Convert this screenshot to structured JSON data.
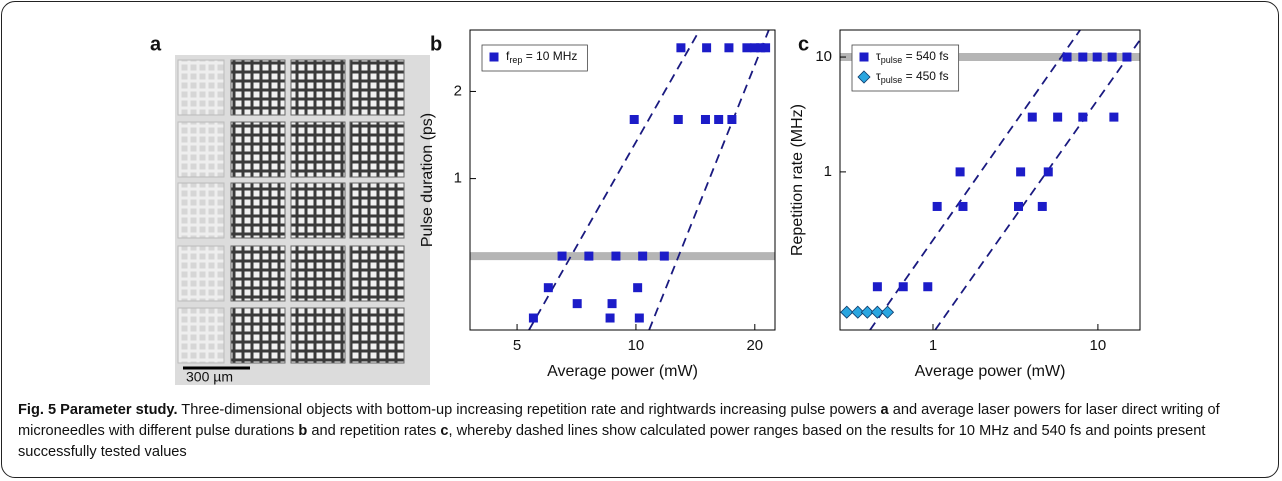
{
  "panel_a": {
    "label": "a",
    "scale_bar": "300 µm"
  },
  "chart_data": [
    {
      "type": "scatter",
      "label": "b",
      "xlabel": "Average power (mW)",
      "ylabel": "Pulse duration (ps)",
      "xscale": "log",
      "yscale": "log",
      "xlim": [
        3.8,
        22.5
      ],
      "ylim": [
        0.3,
        3.26
      ],
      "xticks": [
        5,
        10,
        20
      ],
      "yticks": [
        1,
        2
      ],
      "band": 0.54,
      "band_color": "#b5b5b5",
      "line_color": "#1a1a80",
      "legend": "upper left",
      "series": [
        {
          "name": [
            "f",
            "rep",
            " = 10 MHz"
          ],
          "color": "#1c1cc8",
          "marker": "square",
          "x": [
            13.0,
            15.1,
            17.2,
            19.1,
            20.0,
            20.7,
            21.3,
            9.9,
            12.8,
            15.0,
            16.2,
            17.5,
            6.5,
            7.6,
            8.9,
            10.4,
            11.8,
            6.0,
            10.1,
            7.1,
            8.7,
            5.5,
            8.6,
            10.2
          ],
          "values": [
            2.83,
            2.83,
            2.83,
            2.83,
            2.83,
            2.83,
            2.83,
            1.6,
            1.6,
            1.6,
            1.6,
            1.6,
            0.54,
            0.54,
            0.54,
            0.54,
            0.54,
            0.42,
            0.42,
            0.37,
            0.37,
            0.33,
            0.33,
            0.33
          ]
        }
      ],
      "lines": [
        {
          "x": [
            5.36,
            14.5
          ],
          "y": [
            0.3,
            3.26
          ]
        },
        {
          "x": [
            10.8,
            21.7
          ],
          "y": [
            0.3,
            3.26
          ]
        }
      ]
    },
    {
      "type": "scatter",
      "label": "c",
      "xlabel": "Average power (mW)",
      "ylabel": "Repetition rate (MHz)",
      "xscale": "log",
      "yscale": "log",
      "xlim": [
        0.273,
        18
      ],
      "ylim": [
        0.042,
        17.2
      ],
      "xticks": [
        1,
        10
      ],
      "yticks": [
        1,
        10
      ],
      "band": 10,
      "band_color": "#b5b5b5",
      "line_color": "#1a1a80",
      "legend": "upper left",
      "series": [
        {
          "name": [
            "τ",
            "pulse",
            " = 540 fs"
          ],
          "color": "#1c1cc8",
          "marker": "square",
          "x": [
            6.5,
            8.1,
            9.9,
            12.2,
            15.0,
            4.0,
            5.7,
            8.1,
            12.5,
            1.46,
            3.4,
            5.0,
            1.06,
            1.52,
            3.3,
            4.6,
            0.46,
            0.66,
            0.93
          ],
          "values": [
            10,
            10,
            10,
            10,
            10,
            3,
            3,
            3,
            3,
            1,
            1,
            1,
            0.5,
            0.5,
            0.5,
            0.5,
            0.1,
            0.1,
            0.1
          ]
        },
        {
          "name": [
            "τ",
            "pulse",
            " = 450 fs"
          ],
          "color": "#2aa6e0",
          "marker": "diamond",
          "x": [
            0.3,
            0.35,
            0.4,
            0.46,
            0.53
          ],
          "values": [
            0.06,
            0.06,
            0.06,
            0.06,
            0.06
          ]
        }
      ],
      "lines": [
        {
          "x": [
            0.415,
            7.8
          ],
          "y": [
            0.042,
            17.2
          ]
        },
        {
          "x": [
            1.03,
            18
          ],
          "y": [
            0.042,
            14.1
          ]
        }
      ]
    }
  ],
  "caption": {
    "segments": [
      {
        "text": "Fig. 5 Parameter study.",
        "bold": true
      },
      {
        "text": " Three-dimensional objects with bottom-up increasing repetition rate and rightwards increasing pulse powers ",
        "bold": false
      },
      {
        "text": "a",
        "bold": true
      },
      {
        "text": " and average laser powers for laser direct writing of microneedles with different pulse durations ",
        "bold": false
      },
      {
        "text": "b",
        "bold": true
      },
      {
        "text": " and repetition rates ",
        "bold": false
      },
      {
        "text": "c",
        "bold": true
      },
      {
        "text": ", whereby dashed lines show calculated power ranges based on the results for 10 MHz and 540 fs and points present successfully tested values",
        "bold": false
      }
    ]
  }
}
